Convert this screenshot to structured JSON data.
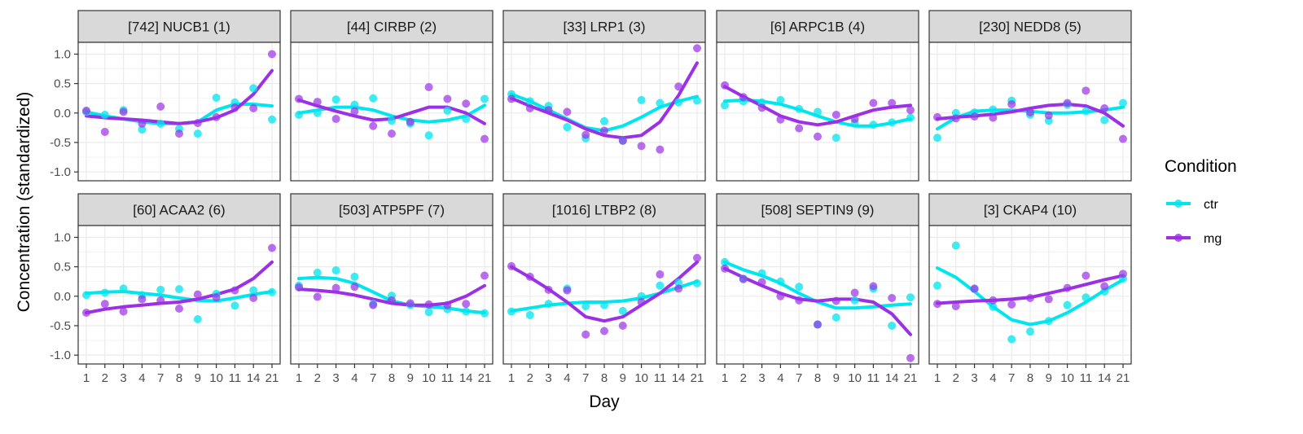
{
  "chart_data": {
    "type": "scatter",
    "subtype": "faceted scatter with smoothed lines",
    "xlabel": "Day",
    "ylabel": "Concentration (standardized)",
    "x_categories": [
      "1",
      "2",
      "3",
      "4",
      "7",
      "8",
      "9",
      "10",
      "11",
      "14",
      "21"
    ],
    "ylim": [
      -1.15,
      1.2
    ],
    "yticks": [
      1.0,
      0.5,
      0.0,
      -0.5,
      -1.0
    ],
    "ytick_labels": [
      "1.0",
      "0.5",
      "0.0",
      "-0.5",
      "-1.0"
    ],
    "grid": true,
    "legend": {
      "title": "Condition",
      "placement": "right",
      "entries": [
        {
          "name": "ctr",
          "color": "#00E5EE"
        },
        {
          "name": "mg",
          "color": "#9B30E6"
        }
      ]
    },
    "colors": {
      "ctr": "#00E5EE",
      "mg": "#9B30E6",
      "strip_bg": "#d9d9d9",
      "panel_border": "#333333",
      "grid": "#ebebeb"
    },
    "panels": [
      {
        "title": "[742] NUCB1 (1)",
        "ctr_points": [
          0.02,
          -0.03,
          0.05,
          -0.28,
          -0.18,
          -0.27,
          -0.35,
          0.26,
          0.18,
          0.42,
          -0.11
        ],
        "mg_points": [
          0.04,
          -0.32,
          0.02,
          -0.18,
          0.11,
          -0.35,
          -0.17,
          -0.07,
          0.09,
          0.08,
          1.0
        ],
        "ctr_fit": [
          0.02,
          -0.05,
          -0.1,
          -0.15,
          -0.18,
          -0.18,
          -0.15,
          0.05,
          0.15,
          0.15,
          0.12
        ],
        "mg_fit": [
          -0.05,
          -0.08,
          -0.1,
          -0.12,
          -0.15,
          -0.18,
          -0.15,
          -0.08,
          0.05,
          0.32,
          0.72
        ]
      },
      {
        "title": "[44] CIRBP (2)",
        "ctr_points": [
          -0.03,
          0.0,
          0.23,
          0.14,
          0.25,
          -0.13,
          -0.18,
          -0.38,
          0.04,
          -0.1,
          0.24
        ],
        "mg_points": [
          0.24,
          0.19,
          -0.1,
          0.03,
          -0.22,
          -0.35,
          -0.15,
          0.44,
          0.24,
          0.16,
          -0.44
        ],
        "ctr_fit": [
          0.0,
          0.05,
          0.1,
          0.1,
          0.05,
          -0.05,
          -0.12,
          -0.15,
          -0.12,
          -0.05,
          0.13
        ],
        "mg_fit": [
          0.22,
          0.12,
          0.03,
          -0.05,
          -0.12,
          -0.1,
          0.0,
          0.1,
          0.1,
          0.0,
          -0.18
        ]
      },
      {
        "title": "[33] LRP1 (3)",
        "ctr_points": [
          0.32,
          0.2,
          0.12,
          -0.24,
          -0.43,
          -0.14,
          -0.47,
          0.22,
          0.17,
          0.18,
          0.21
        ],
        "mg_points": [
          0.24,
          0.08,
          0.05,
          0.02,
          -0.37,
          -0.3,
          -0.47,
          -0.56,
          -0.62,
          0.45,
          1.1
        ],
        "ctr_fit": [
          0.32,
          0.2,
          0.05,
          -0.1,
          -0.25,
          -0.3,
          -0.22,
          -0.07,
          0.1,
          0.2,
          0.28
        ],
        "mg_fit": [
          0.25,
          0.12,
          0.0,
          -0.12,
          -0.27,
          -0.38,
          -0.42,
          -0.38,
          -0.15,
          0.3,
          0.85
        ]
      },
      {
        "title": "[6] ARPC1B (4)",
        "ctr_points": [
          0.13,
          0.2,
          0.18,
          0.22,
          0.07,
          0.02,
          -0.42,
          -0.17,
          -0.2,
          -0.16,
          -0.08
        ],
        "mg_points": [
          0.47,
          0.27,
          0.09,
          -0.11,
          -0.26,
          -0.4,
          -0.03,
          -0.1,
          0.17,
          0.17,
          0.05
        ],
        "ctr_fit": [
          0.2,
          0.22,
          0.2,
          0.15,
          0.06,
          -0.05,
          -0.15,
          -0.22,
          -0.22,
          -0.17,
          -0.1
        ],
        "mg_fit": [
          0.45,
          0.28,
          0.12,
          -0.05,
          -0.15,
          -0.2,
          -0.15,
          -0.05,
          0.05,
          0.1,
          0.13
        ]
      },
      {
        "title": "[230] NEDD8 (5)",
        "ctr_points": [
          -0.42,
          0.0,
          0.01,
          0.06,
          0.21,
          -0.03,
          -0.13,
          0.14,
          0.03,
          -0.12,
          0.17
        ],
        "mg_points": [
          -0.07,
          -0.09,
          -0.06,
          -0.08,
          0.15,
          0.01,
          -0.04,
          0.17,
          0.38,
          0.08,
          -0.44
        ],
        "ctr_fit": [
          -0.27,
          -0.08,
          0.03,
          0.05,
          0.05,
          0.03,
          0.0,
          0.0,
          0.02,
          0.05,
          0.1
        ],
        "mg_fit": [
          -0.1,
          -0.07,
          -0.05,
          -0.02,
          0.02,
          0.08,
          0.13,
          0.15,
          0.12,
          0.0,
          -0.22
        ]
      },
      {
        "title": "[60] ACAA2 (6)",
        "ctr_points": [
          0.02,
          0.06,
          0.13,
          0.02,
          0.11,
          0.12,
          -0.39,
          0.04,
          -0.16,
          0.1,
          0.07
        ],
        "mg_points": [
          -0.28,
          -0.13,
          -0.26,
          -0.05,
          -0.07,
          -0.21,
          0.03,
          -0.02,
          0.1,
          -0.03,
          0.82
        ],
        "ctr_fit": [
          0.05,
          0.07,
          0.08,
          0.05,
          0.02,
          -0.03,
          -0.07,
          -0.08,
          -0.03,
          0.03,
          0.08
        ],
        "mg_fit": [
          -0.28,
          -0.22,
          -0.18,
          -0.15,
          -0.12,
          -0.1,
          -0.05,
          0.03,
          0.12,
          0.3,
          0.58
        ]
      },
      {
        "title": "[503] ATP5PF (7)",
        "ctr_points": [
          0.18,
          0.4,
          0.44,
          0.33,
          -0.13,
          0.01,
          -0.15,
          -0.27,
          -0.22,
          -0.26,
          -0.29
        ],
        "mg_points": [
          0.15,
          -0.01,
          0.14,
          0.16,
          -0.15,
          -0.07,
          -0.12,
          -0.14,
          -0.15,
          -0.13,
          0.35
        ],
        "ctr_fit": [
          0.3,
          0.32,
          0.3,
          0.22,
          0.07,
          -0.08,
          -0.15,
          -0.18,
          -0.2,
          -0.25,
          -0.28
        ],
        "mg_fit": [
          0.12,
          0.1,
          0.07,
          0.02,
          -0.05,
          -0.12,
          -0.15,
          -0.15,
          -0.12,
          0.0,
          0.18
        ]
      },
      {
        "title": "[1016] LTBP2 (8)",
        "ctr_points": [
          -0.26,
          -0.32,
          -0.13,
          0.13,
          -0.17,
          -0.15,
          -0.25,
          0.0,
          0.18,
          0.23,
          0.22
        ],
        "mg_points": [
          0.51,
          0.33,
          0.11,
          0.1,
          -0.65,
          -0.59,
          -0.5,
          -0.1,
          0.37,
          0.13,
          0.65
        ],
        "ctr_fit": [
          -0.25,
          -0.2,
          -0.15,
          -0.12,
          -0.1,
          -0.1,
          -0.08,
          -0.03,
          0.05,
          0.15,
          0.25
        ],
        "mg_fit": [
          0.5,
          0.32,
          0.12,
          -0.1,
          -0.35,
          -0.42,
          -0.35,
          -0.15,
          0.05,
          0.3,
          0.58
        ]
      },
      {
        "title": "[508] SEPTIN9 (9)",
        "ctr_points": [
          0.58,
          0.3,
          0.39,
          0.25,
          0.16,
          -0.48,
          -0.36,
          -0.07,
          0.13,
          -0.5,
          -0.02
        ],
        "mg_points": [
          0.47,
          0.29,
          0.24,
          0.0,
          -0.07,
          -0.48,
          -0.08,
          0.06,
          0.17,
          -0.03,
          -1.05
        ],
        "ctr_fit": [
          0.58,
          0.45,
          0.35,
          0.22,
          0.05,
          -0.1,
          -0.2,
          -0.2,
          -0.18,
          -0.15,
          -0.13
        ],
        "mg_fit": [
          0.47,
          0.32,
          0.18,
          0.05,
          -0.05,
          -0.08,
          -0.05,
          -0.05,
          -0.1,
          -0.3,
          -0.65
        ]
      },
      {
        "title": "[3] CKAP4 (10)",
        "ctr_points": [
          0.18,
          0.86,
          0.12,
          -0.18,
          -0.73,
          -0.6,
          -0.42,
          -0.15,
          -0.02,
          0.08,
          0.3
        ],
        "mg_points": [
          -0.13,
          -0.17,
          0.13,
          -0.07,
          -0.14,
          -0.03,
          -0.05,
          0.14,
          0.35,
          0.17,
          0.38
        ],
        "ctr_fit": [
          0.48,
          0.32,
          0.08,
          -0.18,
          -0.4,
          -0.48,
          -0.42,
          -0.28,
          -0.1,
          0.1,
          0.28
        ],
        "mg_fit": [
          -0.12,
          -0.1,
          -0.08,
          -0.07,
          -0.05,
          -0.02,
          0.05,
          0.12,
          0.2,
          0.28,
          0.35
        ]
      }
    ]
  }
}
